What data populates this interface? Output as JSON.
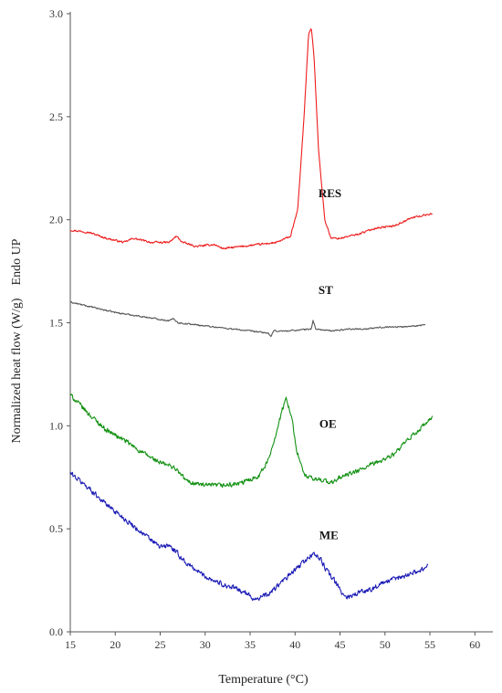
{
  "chart_data": {
    "type": "line",
    "xlabel": "Temperature (°C)",
    "ylabel": "Normalized heat flow (W/g)    Endo UP",
    "xlim": [
      15,
      62
    ],
    "ylim": [
      0,
      3.0
    ],
    "x_ticks": [
      "15",
      "20",
      "25",
      "30",
      "35",
      "40",
      "45",
      "50",
      "55",
      "60"
    ],
    "y_ticks": [
      "0.0",
      "0.5",
      "1.0",
      "1.5",
      "2.0",
      "2.5",
      "3.0"
    ],
    "grid": false,
    "series": [
      {
        "name": "RES",
        "color": "#ee1c1c",
        "x": [
          15,
          17,
          19,
          21,
          22,
          24,
          26,
          26.8,
          27.5,
          29,
          31,
          32,
          34,
          36,
          38,
          39.5,
          40.3,
          41,
          41.5,
          41.8,
          42.1,
          42.6,
          43.3,
          44,
          45,
          47,
          49,
          51,
          53,
          55.3
        ],
        "y": [
          1.95,
          1.94,
          1.91,
          1.89,
          1.91,
          1.89,
          1.89,
          1.92,
          1.89,
          1.87,
          1.88,
          1.86,
          1.87,
          1.88,
          1.89,
          1.92,
          2.05,
          2.5,
          2.9,
          2.93,
          2.8,
          2.35,
          2.0,
          1.91,
          1.91,
          1.93,
          1.96,
          1.97,
          2.01,
          2.03
        ],
        "noise": 0.004
      },
      {
        "name": "ST",
        "color": "#555555",
        "x": [
          15,
          18,
          20,
          23,
          26,
          26.5,
          27,
          29,
          31,
          33,
          35,
          37,
          37.3,
          37.6,
          39,
          41.8,
          42,
          42.3,
          44,
          46,
          48,
          50,
          52,
          54.5
        ],
        "y": [
          1.6,
          1.57,
          1.55,
          1.53,
          1.51,
          1.52,
          1.5,
          1.49,
          1.48,
          1.47,
          1.46,
          1.45,
          1.43,
          1.46,
          1.46,
          1.47,
          1.51,
          1.47,
          1.46,
          1.47,
          1.47,
          1.48,
          1.48,
          1.49
        ],
        "noise": 0.003
      },
      {
        "name": "OE",
        "color": "#129112",
        "x": [
          15,
          17,
          19,
          21,
          23,
          25,
          26.5,
          28,
          30,
          32,
          34,
          36,
          37,
          38,
          38.6,
          39,
          39.5,
          40.2,
          41,
          42,
          43,
          44,
          45,
          47,
          49,
          51,
          53,
          55.3
        ],
        "y": [
          1.15,
          1.06,
          0.98,
          0.93,
          0.87,
          0.82,
          0.8,
          0.73,
          0.71,
          0.71,
          0.72,
          0.76,
          0.83,
          0.98,
          1.08,
          1.13,
          1.07,
          0.88,
          0.76,
          0.74,
          0.74,
          0.72,
          0.75,
          0.78,
          0.82,
          0.86,
          0.95,
          1.04
        ],
        "noise": 0.01
      },
      {
        "name": "ME",
        "color": "#1a1ab5",
        "x": [
          15,
          17,
          19,
          21,
          23,
          25,
          26,
          28,
          30,
          32,
          34,
          35.5,
          37,
          39,
          41,
          42,
          42.7,
          43.5,
          44.5,
          45.3,
          46,
          47,
          48,
          50,
          52,
          54,
          54.8
        ],
        "y": [
          0.77,
          0.7,
          0.62,
          0.55,
          0.48,
          0.41,
          0.42,
          0.33,
          0.27,
          0.23,
          0.2,
          0.16,
          0.18,
          0.26,
          0.34,
          0.38,
          0.36,
          0.3,
          0.24,
          0.18,
          0.17,
          0.19,
          0.2,
          0.24,
          0.27,
          0.3,
          0.32
        ],
        "noise": 0.011
      }
    ],
    "annotations": [
      {
        "text": "RES",
        "x": 42.6,
        "y": 2.11
      },
      {
        "text": "ST",
        "x": 42.6,
        "y": 1.64
      },
      {
        "text": "OE",
        "x": 42.7,
        "y": 0.99
      },
      {
        "text": "ME",
        "x": 42.7,
        "y": 0.45
      }
    ]
  }
}
